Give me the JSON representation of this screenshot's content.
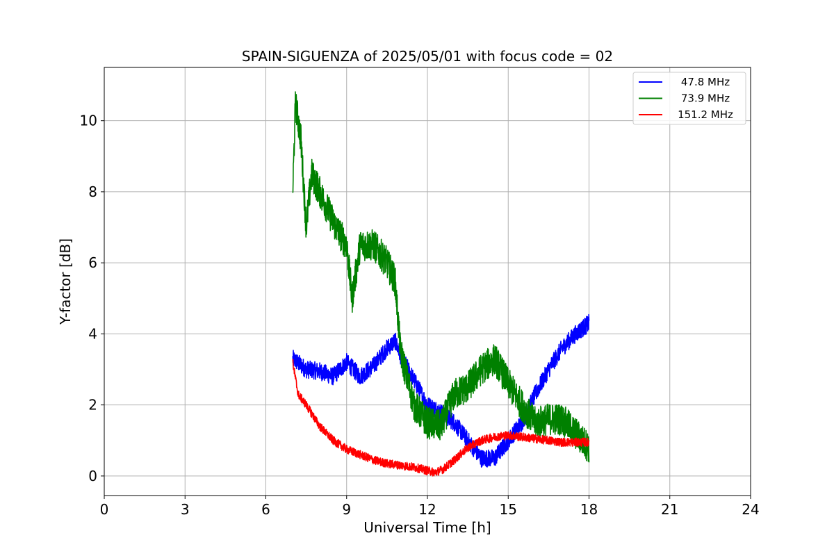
{
  "chart_data": {
    "type": "line",
    "title": "SPAIN-SIGUENZA of 2025/05/01 with focus code = 02",
    "xlabel": "Universal Time [h]",
    "ylabel": "Y-factor [dB]",
    "xlim": [
      0,
      24
    ],
    "ylim": [
      -0.55,
      11.5
    ],
    "xticks": [
      0,
      3,
      6,
      9,
      12,
      15,
      18,
      21,
      24
    ],
    "yticks": [
      0,
      2,
      4,
      6,
      8,
      10
    ],
    "grid": true,
    "legend_position": "top-right",
    "series": [
      {
        "name": "47.8 MHz",
        "color": "#0000ff",
        "x": [
          7.0,
          7.5,
          8.0,
          8.5,
          9.0,
          9.5,
          10.0,
          10.5,
          10.8,
          11.0,
          11.5,
          12.0,
          12.5,
          13.0,
          13.5,
          14.0,
          14.5,
          15.0,
          15.5,
          16.0,
          16.5,
          17.0,
          17.5,
          18.0
        ],
        "y": [
          3.3,
          3.0,
          2.95,
          2.8,
          3.2,
          2.8,
          3.1,
          3.6,
          3.8,
          3.4,
          2.7,
          2.0,
          1.8,
          1.5,
          1.0,
          0.5,
          0.5,
          1.0,
          1.5,
          2.3,
          3.0,
          3.6,
          4.0,
          4.3
        ],
        "amplitude": 0.25
      },
      {
        "name": "73.9 MHz",
        "color": "#008000",
        "x": [
          7.0,
          7.1,
          7.3,
          7.5,
          7.7,
          8.0,
          8.3,
          8.6,
          9.0,
          9.2,
          9.5,
          10.0,
          10.5,
          10.8,
          11.0,
          11.5,
          12.0,
          12.5,
          13.0,
          13.5,
          14.0,
          14.5,
          15.0,
          15.5,
          16.0,
          16.5,
          17.0,
          17.5,
          18.0
        ],
        "y": [
          8.0,
          10.5,
          9.5,
          7.0,
          8.5,
          8.0,
          7.5,
          7.0,
          6.5,
          5.0,
          6.5,
          6.5,
          6.0,
          5.5,
          3.5,
          2.0,
          1.5,
          1.4,
          2.3,
          2.5,
          3.0,
          3.3,
          2.6,
          2.0,
          1.5,
          1.6,
          1.6,
          1.2,
          0.8
        ],
        "amplitude": 0.45
      },
      {
        "name": "151.2 MHz",
        "color": "#ff0000",
        "x": [
          7.0,
          7.2,
          7.5,
          8.0,
          8.5,
          9.0,
          9.5,
          10.0,
          10.5,
          11.0,
          11.5,
          12.0,
          12.3,
          12.6,
          13.0,
          13.5,
          14.0,
          14.5,
          15.0,
          15.5,
          16.0,
          16.5,
          17.0,
          17.5,
          18.0
        ],
        "y": [
          3.2,
          2.3,
          2.0,
          1.4,
          1.0,
          0.75,
          0.6,
          0.45,
          0.35,
          0.3,
          0.25,
          0.15,
          0.1,
          0.2,
          0.45,
          0.8,
          1.0,
          1.1,
          1.15,
          1.1,
          1.05,
          1.0,
          0.95,
          0.95,
          0.95
        ],
        "amplitude": 0.12
      }
    ]
  }
}
